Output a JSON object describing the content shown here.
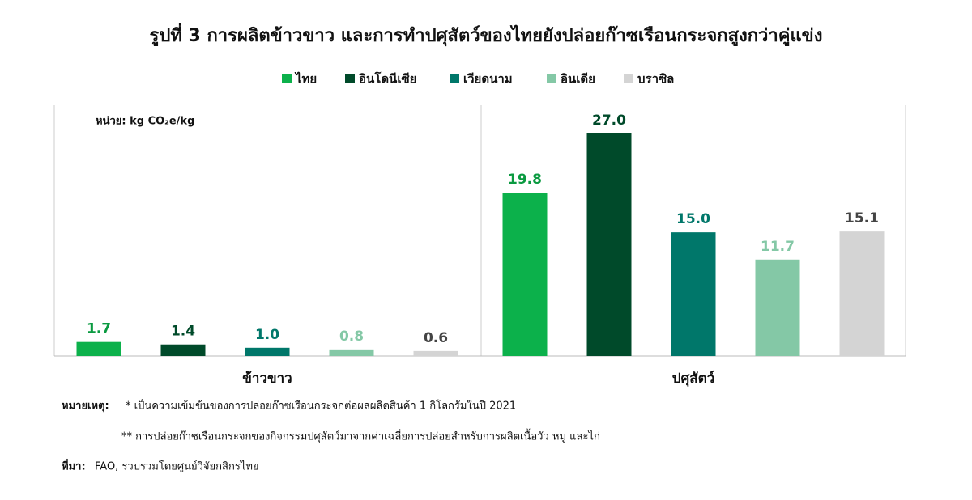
{
  "chart_data": {
    "type": "bar",
    "title": "รูปที่ 3 การผลิตข้าวขาว และการทำปศุสัตว์ของไทยยังปล่อยก๊าซเรือนกระจกสูงกว่าคู่แข่ง",
    "unit_label": "หน่วย: kg CO₂e/kg",
    "categories": [
      "ข้าวขาว",
      "ปศุสัตว์"
    ],
    "series": [
      {
        "name": "ไทย",
        "color": "#0cb14b",
        "values": [
          1.7,
          19.8
        ],
        "value_labels": [
          "1.7",
          "19.8"
        ]
      },
      {
        "name": "อินโดนีเซีย",
        "color": "#004a2a",
        "values": [
          1.4,
          27.0
        ],
        "value_labels": [
          "1.4",
          "27.0"
        ]
      },
      {
        "name": "เวียดนาม",
        "color": "#00776a",
        "values": [
          1.0,
          15.0
        ],
        "value_labels": [
          "1.0",
          "15.0"
        ]
      },
      {
        "name": "อินเดีย",
        "color": "#84c8a6",
        "values": [
          0.8,
          11.7
        ],
        "value_labels": [
          "0.8",
          "11.7"
        ]
      },
      {
        "name": "บราซิล",
        "color": "#d4d4d4",
        "values": [
          0.6,
          15.1
        ],
        "value_labels": [
          "0.6",
          "15.1"
        ]
      }
    ]
  },
  "notes": {
    "label": "หมายเหตุ:",
    "items": [
      "* เป็นความเข้มข้นของการปล่อยก๊าซเรือนกระจกต่อผลผลิตสินค้า 1 กิโลกรัมในปี 2021",
      "** การปล่อยก๊าซเรือนกระจกของกิจกรรมปศุสัตว์มาจากค่าเฉลี่ยการปล่อยสำหรับการผลิตเนื้อวัว หมู และไก่"
    ]
  },
  "source": {
    "label": "ที่มา:",
    "text": "FAO, รวบรวมโดยศูนย์วิจัยกสิกรไทย"
  }
}
